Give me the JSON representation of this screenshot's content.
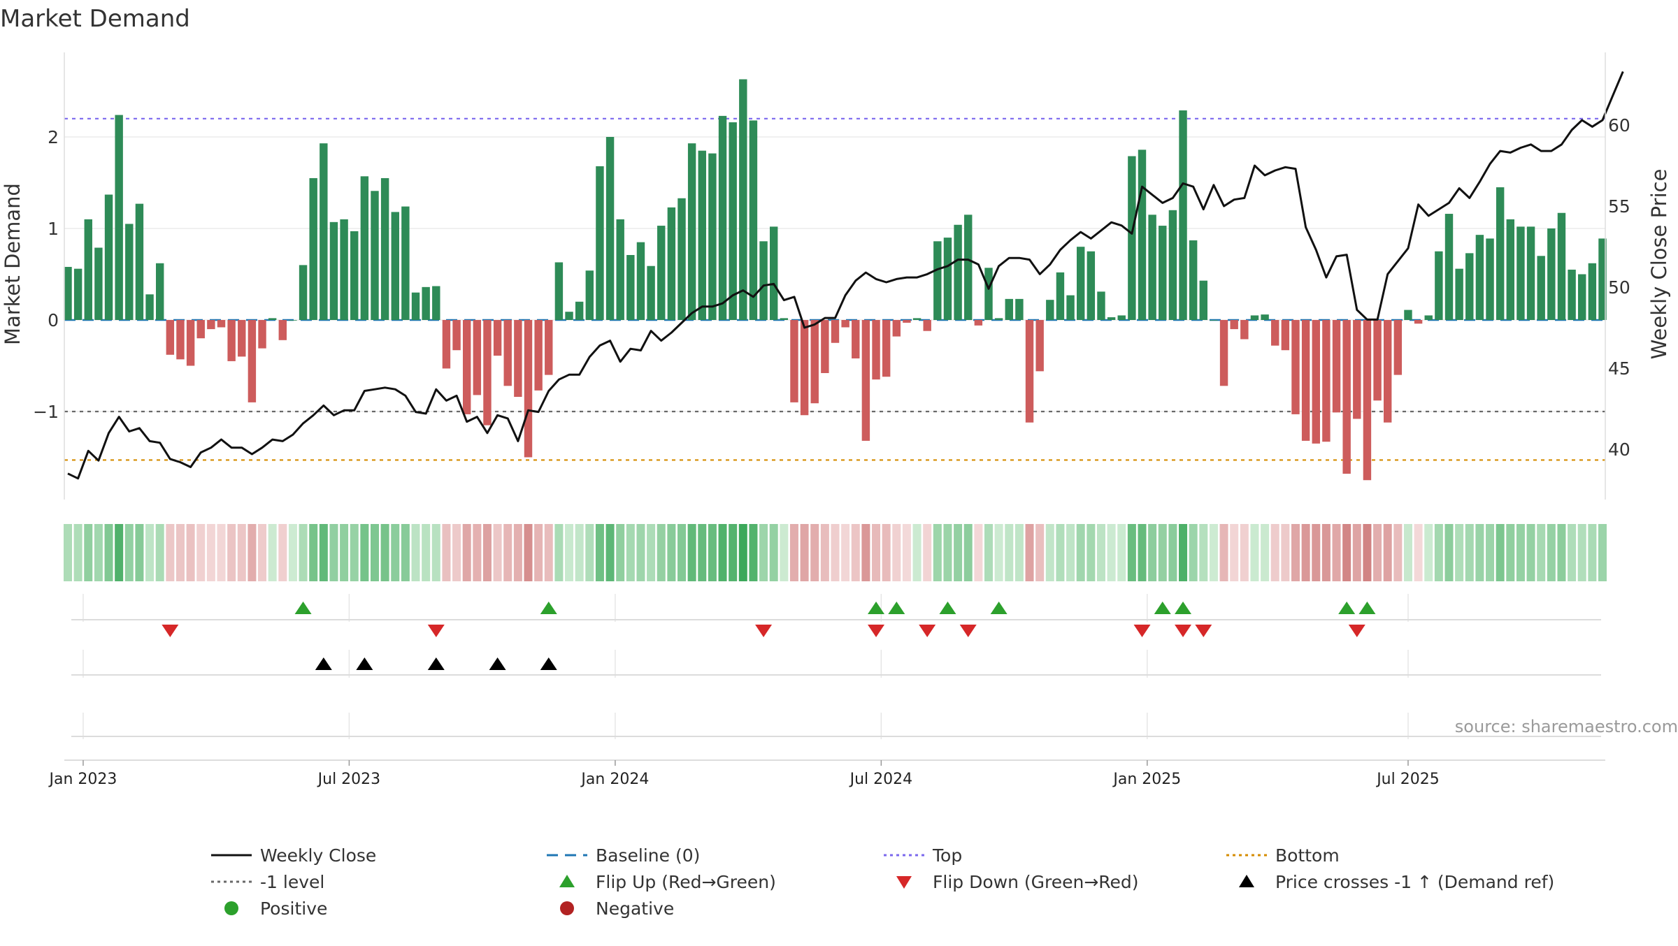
{
  "chart_data": {
    "type": "bar",
    "title": "Market Demand",
    "ylabel_left": "Market Demand",
    "ylabel_right": "Weekly Close Price",
    "ylim_left": [
      -2.0,
      2.85
    ],
    "ylim_right": [
      37.0,
      64.5
    ],
    "yticks_left": [
      2,
      1,
      0,
      -1
    ],
    "yticks_left_labels": [
      "2",
      "1",
      "0",
      "−1"
    ],
    "yticks_right": [
      60,
      55,
      50,
      45,
      40
    ],
    "x_tick_labels": [
      "Jan 2023",
      "Jul 2023",
      "Jan 2024",
      "Jul 2024",
      "Jan 2025",
      "Jul 2025"
    ],
    "x_tick_weeks": [
      1.5,
      27.5,
      53.5,
      79.5,
      105.5,
      131
    ],
    "levels": {
      "top": 2.2,
      "minus_one": -1.0,
      "bottom": -1.53,
      "baseline": 0
    },
    "demand_values": [
      0.58,
      0.56,
      1.1,
      0.79,
      1.37,
      2.24,
      1.05,
      1.27,
      0.28,
      0.62,
      -0.38,
      -0.43,
      -0.5,
      -0.2,
      -0.1,
      -0.08,
      -0.45,
      -0.4,
      -0.9,
      -0.31,
      0.02,
      -0.22,
      0,
      0.6,
      1.55,
      1.93,
      1.07,
      1.1,
      0.97,
      1.57,
      1.41,
      1.55,
      1.18,
      1.24,
      0.3,
      0.36,
      0.37,
      -0.53,
      -0.33,
      -1.03,
      -0.82,
      -1.15,
      -0.39,
      -0.72,
      -0.84,
      -1.5,
      -0.77,
      -0.6,
      0.63,
      0.09,
      0.2,
      0.54,
      1.68,
      2.0,
      1.1,
      0.71,
      0.85,
      0.59,
      1.03,
      1.23,
      1.33,
      1.93,
      1.85,
      1.82,
      2.23,
      2.16,
      2.63,
      2.18,
      0.86,
      1.02,
      0.02,
      -0.9,
      -1.04,
      -0.91,
      -0.58,
      -0.25,
      -0.08,
      -0.42,
      -1.32,
      -0.65,
      -0.62,
      -0.18,
      -0.03,
      0.02,
      -0.12,
      0.86,
      0.9,
      1.04,
      1.15,
      -0.06,
      0.57,
      0.02,
      0.23,
      0.23,
      -1.12,
      -0.56,
      0.22,
      0.52,
      0.27,
      0.8,
      0.75,
      0.31,
      0.03,
      0.05,
      1.79,
      1.86,
      1.15,
      1.03,
      1.2,
      2.29,
      0.87,
      0.43,
      0,
      -0.72,
      -0.1,
      -0.21,
      0.05,
      0.06,
      -0.28,
      -0.33,
      -1.03,
      -1.32,
      -1.35,
      -1.33,
      -1.01,
      -1.68,
      -1.08,
      -1.75,
      -0.88,
      -1.12,
      -0.6,
      0.11,
      -0.04,
      0.05,
      0.75,
      1.16,
      0.56,
      0.73,
      0.93,
      0.89,
      1.45,
      1.1,
      1.02,
      1.02,
      0.7,
      1.0,
      1.17,
      0.55,
      0.5,
      0.62,
      0.89
    ],
    "price_values": [
      38.5,
      38.2,
      39.9,
      39.3,
      41.0,
      42.0,
      41.1,
      41.3,
      40.5,
      40.4,
      39.4,
      39.2,
      38.9,
      39.8,
      40.1,
      40.6,
      40.1,
      40.1,
      39.7,
      40.1,
      40.6,
      40.5,
      40.9,
      41.6,
      42.1,
      42.7,
      42.1,
      42.4,
      42.4,
      43.6,
      43.7,
      43.8,
      43.7,
      43.3,
      42.3,
      42.2,
      43.7,
      43.0,
      43.3,
      41.7,
      42.0,
      41.0,
      42.1,
      41.9,
      40.5,
      42.4,
      42.3,
      43.6,
      44.3,
      44.6,
      44.6,
      45.7,
      46.4,
      46.7,
      45.4,
      46.2,
      46.1,
      47.3,
      46.7,
      47.2,
      47.8,
      48.4,
      48.8,
      48.8,
      49.0,
      49.5,
      49.8,
      49.4,
      50.1,
      50.2,
      49.2,
      49.4,
      47.5,
      47.7,
      48.1,
      48.1,
      49.5,
      50.4,
      50.9,
      50.5,
      50.3,
      50.5,
      50.6,
      50.6,
      50.8,
      51.1,
      51.3,
      51.7,
      51.7,
      51.4,
      49.9,
      51.3,
      51.8,
      51.8,
      51.7,
      50.8,
      51.4,
      52.3,
      52.9,
      53.4,
      53.0,
      53.5,
      54.0,
      53.8,
      53.3,
      56.2,
      55.7,
      55.2,
      55.5,
      56.4,
      56.2,
      54.8,
      56.3,
      55.0,
      55.4,
      55.5,
      57.5,
      56.9,
      57.2,
      57.4,
      57.3,
      53.7,
      52.3,
      50.6,
      51.9,
      52.0,
      48.6,
      48.0,
      48.0,
      50.8,
      51.6,
      52.4,
      55.1,
      54.4,
      54.8,
      55.2,
      56.1,
      55.5,
      56.5,
      57.6,
      58.4,
      58.3,
      58.6,
      58.8,
      58.4,
      58.4,
      58.8,
      59.7,
      60.3,
      59.9,
      60.3,
      61.8,
      63.3
    ],
    "flip_up_weeks": [
      23,
      47,
      79,
      81,
      86,
      91,
      107,
      109,
      125,
      127
    ],
    "flip_down_weeks": [
      10,
      36,
      68,
      79,
      84,
      88,
      105,
      109,
      111,
      126
    ],
    "price_cross_weeks": [
      25,
      29,
      36,
      42,
      47
    ],
    "source_text": "source: sharemaestro.com",
    "colors": {
      "positive_bar": "#2e8b57",
      "negative_bar": "#cd5c5c",
      "price_line": "#111111",
      "baseline": "#1f77b4",
      "top_line": "#7b68ee",
      "minus_one_line": "#696969",
      "bottom_line": "#d58c00",
      "flip_up": "#2ca02c",
      "flip_down": "#d62728",
      "cross": "#000000",
      "positive_dot": "#2ca02c",
      "negative_dot": "#b22222"
    },
    "legend": [
      {
        "label": "Weekly Close",
        "kind": "solid-line",
        "color": "#111111"
      },
      {
        "label": "Baseline (0)",
        "kind": "dashed-line",
        "color": "#1f77b4"
      },
      {
        "label": "Top",
        "kind": "dotted-line",
        "color": "#7b68ee"
      },
      {
        "label": "Bottom",
        "kind": "dotted-line",
        "color": "#d58c00"
      },
      {
        "label": "-1 level",
        "kind": "dotted-line",
        "color": "#696969"
      },
      {
        "label": "Flip Up (Red→Green)",
        "kind": "triangle-up",
        "color": "#2ca02c"
      },
      {
        "label": "Flip Down (Green→Red)",
        "kind": "triangle-down",
        "color": "#d62728"
      },
      {
        "label": "Price crosses -1 ↑ (Demand ref)",
        "kind": "triangle-up",
        "color": "#000000"
      },
      {
        "label": "Positive",
        "kind": "dot",
        "color": "#2ca02c"
      },
      {
        "label": "Negative",
        "kind": "dot",
        "color": "#b22222"
      }
    ]
  }
}
